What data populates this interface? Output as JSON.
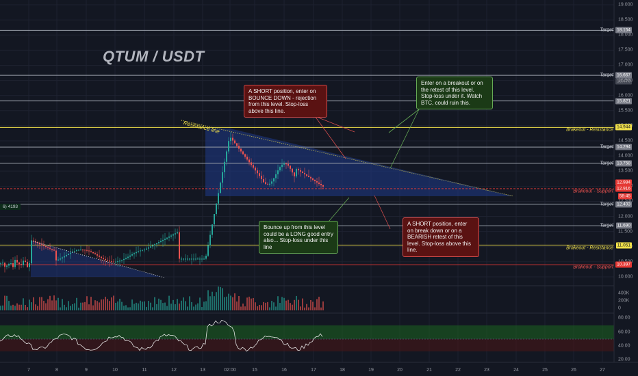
{
  "chart": {
    "title": "QTUM / USDT",
    "resistance_label": "Resistance line",
    "left_badge": "6) 4193"
  },
  "price_axis": {
    "ticks": [
      "19.000",
      "18.500",
      "18.000",
      "17.500",
      "17.000",
      "16.500",
      "16.000",
      "15.500",
      "15.000",
      "14.500",
      "14.000",
      "13.500",
      "13.000",
      "12.500",
      "12.000",
      "11.500",
      "11.000",
      "10.500",
      "10.000"
    ]
  },
  "volume_axis": {
    "ticks": [
      "400K",
      "200K",
      "0"
    ]
  },
  "rsi_axis": {
    "ticks": [
      "80.00",
      "60.00",
      "40.00",
      "20.00"
    ]
  },
  "time_axis": {
    "ticks": [
      "7",
      "8",
      "9",
      "10",
      "11",
      "12",
      "13",
      "02:00",
      "15",
      "16",
      "17",
      "18",
      "19",
      "20",
      "21",
      "22",
      "23",
      "24",
      "25",
      "26",
      "27"
    ]
  },
  "levels": [
    {
      "label": "Target",
      "tag": "18.154",
      "color": "gray"
    },
    {
      "label": "Target",
      "tag": "16.667",
      "color": "gray"
    },
    {
      "label": "",
      "tag": "15.821",
      "color": "gray"
    },
    {
      "label": "Brakeout - Resistance",
      "tag": "14.944",
      "color": "yellow"
    },
    {
      "label": "Target",
      "tag": "14.294",
      "color": "gray"
    },
    {
      "label": "Target",
      "tag": "13.758",
      "color": "gray"
    },
    {
      "label": "Brakeout - Support",
      "tag": "12.916",
      "color": "red"
    },
    {
      "label": "Target",
      "tag": "12.403",
      "color": "gray"
    },
    {
      "label": "Target",
      "tag": "11.690",
      "color": "gray"
    },
    {
      "label": "Brakeout - Resistance",
      "tag": "11.051",
      "color": "yellow"
    },
    {
      "label": "Brakeout - Support",
      "tag": "10.397",
      "color": "red"
    }
  ],
  "extra_tags": {
    "current_price": "12.984",
    "current_time": "58:45",
    "overlap_target": "16.470"
  },
  "notes": {
    "short_bounce": "A SHORT position, enter on BOUNCE DOWN - rejection from this level. Stop-loss above this line.",
    "breakout_long": "Enter on a breakout or on the retest of this level. Stop-loss under it. Watch BTC, could ruin this.",
    "bounce_long": "Bounce up from this level could be a LONG good entry also... Stop-loss under this line",
    "short_breakdown": "A SHORT position, enter on break down or on a BEARISH retest of this level. Stop-loss above this line."
  },
  "colors": {
    "background": "#131722",
    "up": "#26a69a",
    "down": "#ef5350",
    "resistance": "#f0e04a",
    "support": "#e53935",
    "wedge": "#1f3a8a"
  }
}
